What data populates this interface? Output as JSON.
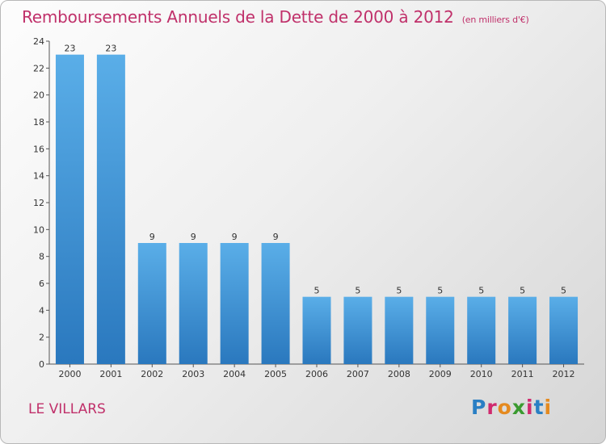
{
  "header": {
    "title": "Remboursements Annuels de la Dette de 2000 à 2012",
    "unit": "(en milliers d'€)"
  },
  "footer": {
    "place": "LE VILLARS",
    "logo": "Proxiti"
  },
  "colors": {
    "accent": "#c0306a",
    "bar_top": "#5aaee8",
    "bar_bottom": "#2a78be"
  },
  "chart_data": {
    "type": "bar",
    "title": "Remboursements Annuels de la Dette de 2000 à 2012",
    "subtitle": "(en milliers d'€)",
    "xlabel": "",
    "ylabel": "",
    "categories": [
      "2000",
      "2001",
      "2002",
      "2003",
      "2004",
      "2005",
      "2006",
      "2007",
      "2008",
      "2009",
      "2010",
      "2011",
      "2012"
    ],
    "values": [
      23,
      23,
      9,
      9,
      9,
      9,
      5,
      5,
      5,
      5,
      5,
      5,
      5
    ],
    "ylim": [
      0,
      24
    ],
    "yticks": [
      0,
      2,
      4,
      6,
      8,
      10,
      12,
      14,
      16,
      18,
      20,
      22,
      24
    ],
    "grid": false,
    "legend": "none"
  }
}
